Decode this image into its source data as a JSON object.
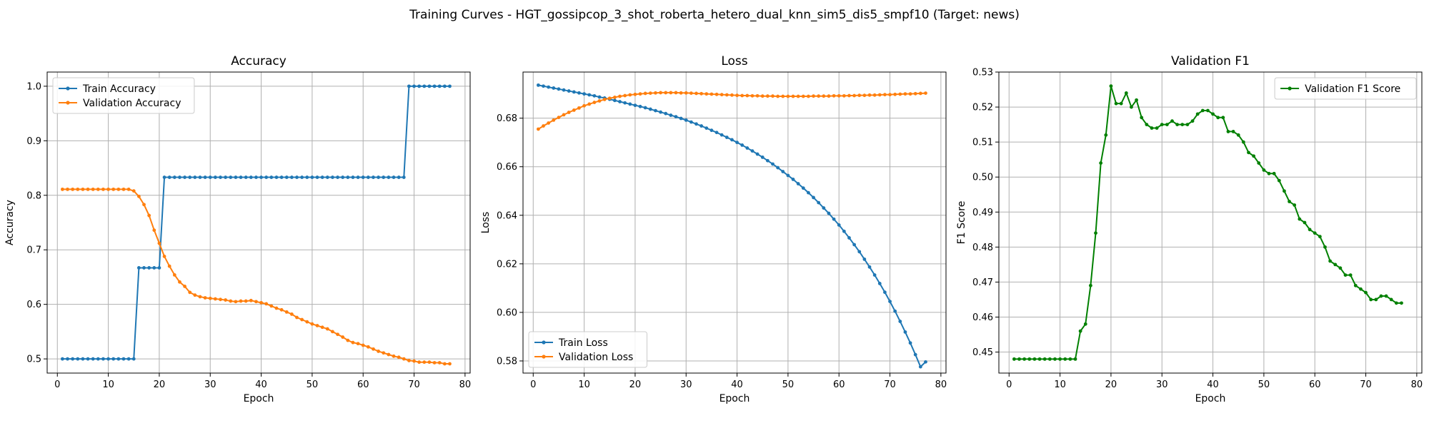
{
  "figure": {
    "title": "Training Curves - HGT_gossipcop_3_shot_roberta_hetero_dual_knn_sim5_dis5_smpf10 (Target: news)"
  },
  "colors": {
    "blue": "#1f77b4",
    "orange": "#ff7f0e",
    "green": "#008000",
    "grid": "#b0b0b0"
  },
  "chart_data": [
    {
      "type": "line",
      "title": "Accuracy",
      "xlabel": "Epoch",
      "ylabel": "Accuracy",
      "xlim": [
        -2,
        81
      ],
      "ylim": [
        0.474,
        1.026
      ],
      "xticks": [
        0,
        10,
        20,
        30,
        40,
        50,
        60,
        70,
        80
      ],
      "yticks": [
        0.5,
        0.6,
        0.7,
        0.8,
        0.9,
        1.0
      ],
      "ytick_labels": [
        "0.5",
        "0.6",
        "0.7",
        "0.8",
        "0.9",
        "1.0"
      ],
      "grid": true,
      "legend": "upper left",
      "x": [
        1,
        2,
        3,
        4,
        5,
        6,
        7,
        8,
        9,
        10,
        11,
        12,
        13,
        14,
        15,
        16,
        17,
        18,
        19,
        20,
        21,
        22,
        23,
        24,
        25,
        26,
        27,
        28,
        29,
        30,
        31,
        32,
        33,
        34,
        35,
        36,
        37,
        38,
        39,
        40,
        41,
        42,
        43,
        44,
        45,
        46,
        47,
        48,
        49,
        50,
        51,
        52,
        53,
        54,
        55,
        56,
        57,
        58,
        59,
        60,
        61,
        62,
        63,
        64,
        65,
        66,
        67,
        68,
        69,
        70,
        71,
        72,
        73,
        74,
        75,
        76,
        77
      ],
      "series": [
        {
          "name": "Train Accuracy",
          "color": "#1f77b4",
          "values": [
            0.5,
            0.5,
            0.5,
            0.5,
            0.5,
            0.5,
            0.5,
            0.5,
            0.5,
            0.5,
            0.5,
            0.5,
            0.5,
            0.5,
            0.5,
            0.667,
            0.667,
            0.667,
            0.667,
            0.667,
            0.833,
            0.833,
            0.833,
            0.833,
            0.833,
            0.833,
            0.833,
            0.833,
            0.833,
            0.833,
            0.833,
            0.833,
            0.833,
            0.833,
            0.833,
            0.833,
            0.833,
            0.833,
            0.833,
            0.833,
            0.833,
            0.833,
            0.833,
            0.833,
            0.833,
            0.833,
            0.833,
            0.833,
            0.833,
            0.833,
            0.833,
            0.833,
            0.833,
            0.833,
            0.833,
            0.833,
            0.833,
            0.833,
            0.833,
            0.833,
            0.833,
            0.833,
            0.833,
            0.833,
            0.833,
            0.833,
            0.833,
            0.833,
            1.0,
            1.0,
            1.0,
            1.0,
            1.0,
            1.0,
            1.0,
            1.0,
            1.0
          ]
        },
        {
          "name": "Validation Accuracy",
          "color": "#ff7f0e",
          "values": [
            0.811,
            0.811,
            0.811,
            0.811,
            0.811,
            0.811,
            0.811,
            0.811,
            0.811,
            0.811,
            0.811,
            0.811,
            0.811,
            0.811,
            0.808,
            0.798,
            0.783,
            0.763,
            0.736,
            0.712,
            0.688,
            0.67,
            0.654,
            0.641,
            0.633,
            0.622,
            0.617,
            0.614,
            0.612,
            0.611,
            0.61,
            0.609,
            0.608,
            0.606,
            0.605,
            0.606,
            0.606,
            0.607,
            0.605,
            0.603,
            0.601,
            0.597,
            0.593,
            0.59,
            0.586,
            0.582,
            0.576,
            0.572,
            0.568,
            0.564,
            0.561,
            0.558,
            0.555,
            0.55,
            0.545,
            0.54,
            0.534,
            0.53,
            0.528,
            0.525,
            0.522,
            0.518,
            0.514,
            0.511,
            0.508,
            0.505,
            0.503,
            0.5,
            0.497,
            0.496,
            0.494,
            0.494,
            0.494,
            0.493,
            0.493,
            0.491,
            0.491
          ]
        }
      ]
    },
    {
      "type": "line",
      "title": "Loss",
      "xlabel": "Epoch",
      "ylabel": "Loss",
      "xlim": [
        -2,
        81
      ],
      "ylim": [
        0.575,
        0.699
      ],
      "xticks": [
        0,
        10,
        20,
        30,
        40,
        50,
        60,
        70,
        80
      ],
      "yticks": [
        0.58,
        0.6,
        0.62,
        0.64,
        0.66,
        0.68
      ],
      "ytick_labels": [
        "0.58",
        "0.60",
        "0.62",
        "0.64",
        "0.66",
        "0.68"
      ],
      "grid": true,
      "legend": "lower left",
      "x": [
        1,
        2,
        3,
        4,
        5,
        6,
        7,
        8,
        9,
        10,
        11,
        12,
        13,
        14,
        15,
        16,
        17,
        18,
        19,
        20,
        21,
        22,
        23,
        24,
        25,
        26,
        27,
        28,
        29,
        30,
        31,
        32,
        33,
        34,
        35,
        36,
        37,
        38,
        39,
        40,
        41,
        42,
        43,
        44,
        45,
        46,
        47,
        48,
        49,
        50,
        51,
        52,
        53,
        54,
        55,
        56,
        57,
        58,
        59,
        60,
        61,
        62,
        63,
        64,
        65,
        66,
        67,
        68,
        69,
        70,
        71,
        72,
        73,
        74,
        75,
        76,
        77
      ],
      "series": [
        {
          "name": "Train Loss",
          "color": "#1f77b4",
          "values": [
            0.6936,
            0.6932,
            0.6928,
            0.6924,
            0.692,
            0.6916,
            0.6912,
            0.6908,
            0.6904,
            0.69,
            0.6896,
            0.6892,
            0.6887,
            0.6883,
            0.6878,
            0.6873,
            0.6868,
            0.6863,
            0.6858,
            0.6853,
            0.6848,
            0.6843,
            0.6837,
            0.6831,
            0.6825,
            0.6819,
            0.6812,
            0.6806,
            0.6799,
            0.6792,
            0.6784,
            0.6776,
            0.6768,
            0.6759,
            0.675,
            0.6741,
            0.6731,
            0.6721,
            0.6711,
            0.67,
            0.6689,
            0.6677,
            0.6665,
            0.6652,
            0.6639,
            0.6625,
            0.6611,
            0.6596,
            0.658,
            0.6564,
            0.6548,
            0.653,
            0.6512,
            0.6493,
            0.6473,
            0.6452,
            0.643,
            0.6408,
            0.6384,
            0.636,
            0.6334,
            0.6307,
            0.6279,
            0.625,
            0.6219,
            0.6187,
            0.6154,
            0.6119,
            0.6083,
            0.6045,
            0.6005,
            0.5963,
            0.5919,
            0.5874,
            0.5826,
            0.5776,
            0.5796
          ]
        },
        {
          "name": "Validation Loss",
          "color": "#ff7f0e",
          "values": [
            0.6755,
            0.6768,
            0.678,
            0.6792,
            0.6803,
            0.6814,
            0.6824,
            0.6833,
            0.6842,
            0.6851,
            0.6858,
            0.6865,
            0.6871,
            0.6877,
            0.6882,
            0.6886,
            0.689,
            0.6893,
            0.6896,
            0.6898,
            0.69,
            0.6902,
            0.6903,
            0.6904,
            0.6905,
            0.6905,
            0.6905,
            0.6905,
            0.6904,
            0.6904,
            0.6903,
            0.6902,
            0.6901,
            0.69,
            0.6899,
            0.6898,
            0.6897,
            0.6896,
            0.6895,
            0.6894,
            0.6893,
            0.6893,
            0.6892,
            0.6892,
            0.6891,
            0.6891,
            0.6891,
            0.689,
            0.689,
            0.689,
            0.689,
            0.689,
            0.689,
            0.689,
            0.6891,
            0.6891,
            0.6891,
            0.6891,
            0.6892,
            0.6892,
            0.6892,
            0.6893,
            0.6893,
            0.6894,
            0.6894,
            0.6895,
            0.6895,
            0.6896,
            0.6897,
            0.6897,
            0.6898,
            0.6899,
            0.69,
            0.69,
            0.6901,
            0.6902,
            0.6903
          ]
        }
      ]
    },
    {
      "type": "line",
      "title": "Validation F1",
      "xlabel": "Epoch",
      "ylabel": "F1 Score",
      "xlim": [
        -2,
        81
      ],
      "ylim": [
        0.444,
        0.53
      ],
      "xticks": [
        0,
        10,
        20,
        30,
        40,
        50,
        60,
        70,
        80
      ],
      "yticks": [
        0.45,
        0.46,
        0.47,
        0.48,
        0.49,
        0.5,
        0.51,
        0.52,
        0.53
      ],
      "ytick_labels": [
        "0.45",
        "0.46",
        "0.47",
        "0.48",
        "0.49",
        "0.50",
        "0.51",
        "0.52",
        "0.53"
      ],
      "grid": true,
      "legend": "upper right",
      "x": [
        1,
        2,
        3,
        4,
        5,
        6,
        7,
        8,
        9,
        10,
        11,
        12,
        13,
        14,
        15,
        16,
        17,
        18,
        19,
        20,
        21,
        22,
        23,
        24,
        25,
        26,
        27,
        28,
        29,
        30,
        31,
        32,
        33,
        34,
        35,
        36,
        37,
        38,
        39,
        40,
        41,
        42,
        43,
        44,
        45,
        46,
        47,
        48,
        49,
        50,
        51,
        52,
        53,
        54,
        55,
        56,
        57,
        58,
        59,
        60,
        61,
        62,
        63,
        64,
        65,
        66,
        67,
        68,
        69,
        70,
        71,
        72,
        73,
        74,
        75,
        76,
        77
      ],
      "series": [
        {
          "name": "Validation F1 Score",
          "color": "#008000",
          "values": [
            0.448,
            0.448,
            0.448,
            0.448,
            0.448,
            0.448,
            0.448,
            0.448,
            0.448,
            0.448,
            0.448,
            0.448,
            0.448,
            0.456,
            0.458,
            0.469,
            0.484,
            0.504,
            0.512,
            0.526,
            0.521,
            0.521,
            0.524,
            0.52,
            0.522,
            0.517,
            0.515,
            0.514,
            0.514,
            0.515,
            0.515,
            0.516,
            0.515,
            0.515,
            0.515,
            0.516,
            0.518,
            0.519,
            0.519,
            0.518,
            0.517,
            0.517,
            0.513,
            0.513,
            0.512,
            0.51,
            0.507,
            0.506,
            0.504,
            0.502,
            0.501,
            0.501,
            0.499,
            0.496,
            0.493,
            0.492,
            0.488,
            0.487,
            0.485,
            0.484,
            0.483,
            0.48,
            0.476,
            0.475,
            0.474,
            0.472,
            0.472,
            0.469,
            0.468,
            0.467,
            0.465,
            0.465,
            0.466,
            0.466,
            0.465,
            0.464,
            0.464
          ]
        }
      ]
    }
  ]
}
